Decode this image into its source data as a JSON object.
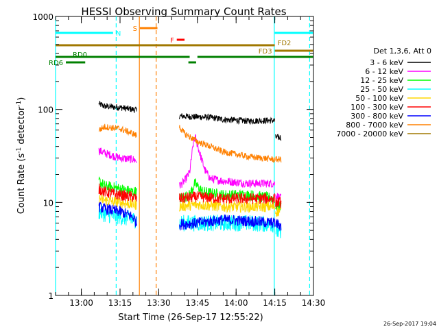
{
  "chart_data": {
    "type": "line",
    "title": "HESSI Observing Summary Count Rates",
    "xlabel": "Start Time (26-Sep-17 12:55:22)",
    "ylabel_parts": [
      "Count Rate (s",
      "-1",
      " detector",
      "-1",
      ")"
    ],
    "footer": "26-Sep-2017 19:04",
    "y_scale": "log",
    "ylim": [
      1,
      1000
    ],
    "xlim_minutes": [
      -5,
      95
    ],
    "x_ticks": [
      {
        "m": 5,
        "label": "13:00"
      },
      {
        "m": 20,
        "label": "13:15"
      },
      {
        "m": 35,
        "label": "13:30"
      },
      {
        "m": 50,
        "label": "13:45"
      },
      {
        "m": 65,
        "label": "14:00"
      },
      {
        "m": 80,
        "label": "14:15"
      },
      {
        "m": 95,
        "label": "14:30"
      }
    ],
    "y_ticks": [
      {
        "v": 1,
        "label": "1"
      },
      {
        "v": 10,
        "label": "10"
      },
      {
        "v": 100,
        "label": "100"
      },
      {
        "v": 1000,
        "label": "1000"
      }
    ],
    "legend": {
      "title": "Det 1,3,6, Att 0",
      "position": "right",
      "entries": [
        {
          "label": "3 - 6 keV",
          "color": "#000000"
        },
        {
          "label": "6 - 12 keV",
          "color": "#ff00ff"
        },
        {
          "label": "12 - 25 keV",
          "color": "#00ff00"
        },
        {
          "label": "25 - 50 keV",
          "color": "#00ffff"
        },
        {
          "label": "50 - 100 keV",
          "color": "#ffd700"
        },
        {
          "label": "100 - 300 keV",
          "color": "#ff0000"
        },
        {
          "label": "300 - 800 keV",
          "color": "#0000ff"
        },
        {
          "label": "800 - 7000 keV",
          "color": "#ff8000"
        },
        {
          "label": "7000 - 20000 keV",
          "color": "#a07800"
        }
      ]
    },
    "series": [
      {
        "name": "3 - 6 keV",
        "color": "#000000",
        "noise": 0.035,
        "segments": [
          [
            [
              11.8,
              115
            ],
            [
              14,
              108
            ],
            [
              20,
              105
            ],
            [
              25,
              100
            ],
            [
              26.5,
              98
            ]
          ],
          [
            [
              43,
              85
            ],
            [
              46,
              84
            ],
            [
              55,
              82
            ],
            [
              60,
              78
            ],
            [
              70,
              75
            ],
            [
              75,
              76
            ],
            [
              80,
              76
            ]
          ],
          [
            [
              80.3,
              50
            ],
            [
              82.5,
              50
            ]
          ]
        ]
      },
      {
        "name": "6 - 12 keV",
        "color": "#ff00ff",
        "noise": 0.045,
        "segments": [
          [
            [
              11.8,
              36
            ],
            [
              14,
              34
            ],
            [
              20,
              30
            ],
            [
              25,
              29
            ],
            [
              26.5,
              28
            ]
          ],
          [
            [
              43,
              15
            ],
            [
              45,
              17
            ],
            [
              46,
              19
            ],
            [
              47,
              21
            ],
            [
              48.5,
              45
            ],
            [
              49.2,
              50
            ],
            [
              51,
              33
            ],
            [
              53,
              22
            ],
            [
              55,
              18
            ],
            [
              60,
              17
            ],
            [
              70,
              16
            ],
            [
              80,
              16
            ]
          ],
          [
            [
              80.3,
              12
            ],
            [
              82.5,
              11
            ]
          ]
        ]
      },
      {
        "name": "12 - 25 keV",
        "color": "#00ff00",
        "noise": 0.06,
        "segments": [
          [
            [
              11.8,
              17
            ],
            [
              14,
              15
            ],
            [
              20,
              14
            ],
            [
              25,
              13
            ],
            [
              26.5,
              13
            ]
          ],
          [
            [
              43,
              11
            ],
            [
              47,
              12
            ],
            [
              49,
              16
            ],
            [
              52,
              13
            ],
            [
              60,
              12
            ],
            [
              70,
              12
            ],
            [
              80,
              11
            ]
          ],
          [
            [
              80.3,
              9
            ],
            [
              82.5,
              9
            ]
          ]
        ]
      },
      {
        "name": "25 - 50 keV",
        "color": "#00ffff",
        "noise": 0.09,
        "segments": [
          [
            [
              11.8,
              8
            ],
            [
              14,
              7.5
            ],
            [
              20,
              7
            ],
            [
              25,
              6.5
            ],
            [
              26.5,
              6.5
            ]
          ],
          [
            [
              43,
              6
            ],
            [
              50,
              6
            ],
            [
              60,
              6
            ],
            [
              70,
              6
            ],
            [
              80,
              5.8
            ]
          ],
          [
            [
              80.3,
              5
            ],
            [
              82.5,
              4.5
            ]
          ]
        ]
      },
      {
        "name": "50 - 100 keV",
        "color": "#ffd700",
        "noise": 0.06,
        "segments": [
          [
            [
              11.8,
              11
            ],
            [
              14,
              10.5
            ],
            [
              20,
              10
            ],
            [
              25,
              9.5
            ],
            [
              26.5,
              9.5
            ]
          ],
          [
            [
              43,
              9
            ],
            [
              50,
              9.5
            ],
            [
              60,
              9
            ],
            [
              70,
              9
            ],
            [
              80,
              9
            ]
          ],
          [
            [
              80.3,
              8
            ],
            [
              82.5,
              8
            ]
          ]
        ]
      },
      {
        "name": "100 - 300 keV",
        "color": "#ff0000",
        "noise": 0.06,
        "segments": [
          [
            [
              11.8,
              14
            ],
            [
              14,
              13
            ],
            [
              20,
              12
            ],
            [
              25,
              11.5
            ],
            [
              26.5,
              11
            ]
          ],
          [
            [
              43,
              11
            ],
            [
              50,
              11.5
            ],
            [
              60,
              11
            ],
            [
              70,
              11
            ],
            [
              80,
              11
            ]
          ],
          [
            [
              80.3,
              10
            ],
            [
              82.5,
              10
            ]
          ]
        ]
      },
      {
        "name": "300 - 800 keV",
        "color": "#0000ff",
        "noise": 0.06,
        "segments": [
          [
            [
              11.8,
              9
            ],
            [
              14,
              8.5
            ],
            [
              20,
              8
            ],
            [
              25,
              7
            ],
            [
              26.5,
              6
            ]
          ],
          [
            [
              43,
              5.8
            ],
            [
              50,
              6
            ],
            [
              60,
              6.5
            ],
            [
              70,
              6.3
            ],
            [
              80,
              6
            ]
          ],
          [
            [
              80.3,
              6
            ],
            [
              82.5,
              5.5
            ]
          ]
        ]
      },
      {
        "name": "800 - 7000 keV",
        "color": "#ff8000",
        "noise": 0.035,
        "segments": [
          [
            [
              11.8,
              60
            ],
            [
              14,
              65
            ],
            [
              20,
              62
            ],
            [
              25,
              55
            ],
            [
              26.5,
              52
            ]
          ],
          [
            [
              43,
              65
            ],
            [
              45,
              55
            ],
            [
              50,
              45
            ],
            [
              55,
              40
            ],
            [
              60,
              35
            ],
            [
              70,
              31
            ],
            [
              80,
              29
            ]
          ],
          [
            [
              80.3,
              29
            ],
            [
              82.5,
              29
            ]
          ]
        ]
      }
    ],
    "vertical_lines": [
      {
        "m": -5,
        "color": "#00ffff",
        "dash": false
      },
      {
        "m": 18.5,
        "color": "#00ffff",
        "dash": true
      },
      {
        "m": 27.5,
        "color": "#ff8000",
        "dash": false
      },
      {
        "m": 34,
        "color": "#ff8000",
        "dash": true
      },
      {
        "m": 79.8,
        "color": "#00ffff",
        "dash": false
      },
      {
        "m": 93.5,
        "color": "#00ffff",
        "dash": true
      }
    ],
    "flag_bars": [
      {
        "label": "N",
        "color": "#00ffff",
        "label_side": "after",
        "segments": [
          [
            -5,
            17.3
          ],
          [
            80,
            94.8
          ]
        ],
        "y": 48
      },
      {
        "label": "S",
        "color": "#ff8000",
        "label_side": "before",
        "segments": [
          [
            27.7,
            34.5
          ]
        ],
        "y": 41
      },
      {
        "label": "F",
        "color": "#ff0000",
        "label_side": "before",
        "segments": [
          [
            42,
            45
          ]
        ],
        "y": 58
      },
      {
        "label": "FD2",
        "color": "#a07800",
        "label_side": "above-end",
        "segments": [
          [
            -5,
            80
          ]
        ],
        "y": 66
      },
      {
        "label": "FD3",
        "color": "#a07800",
        "label_side": "before",
        "segments": [
          [
            80,
            94.8
          ]
        ],
        "y": 74
      },
      {
        "label": "RD0",
        "color": "#008000",
        "label_side": "above",
        "segments": [
          [
            -5,
            47
          ],
          [
            50,
            94.8
          ]
        ],
        "y": 83
      },
      {
        "label": "",
        "color": "#008000",
        "label_side": "none",
        "segments": [
          [
            46.5,
            49.5
          ]
        ],
        "y": 91
      },
      {
        "label": "RD6",
        "color": "#008000",
        "label_side": "before",
        "segments": [
          [
            -1,
            6.5
          ]
        ],
        "y": 91
      }
    ]
  }
}
